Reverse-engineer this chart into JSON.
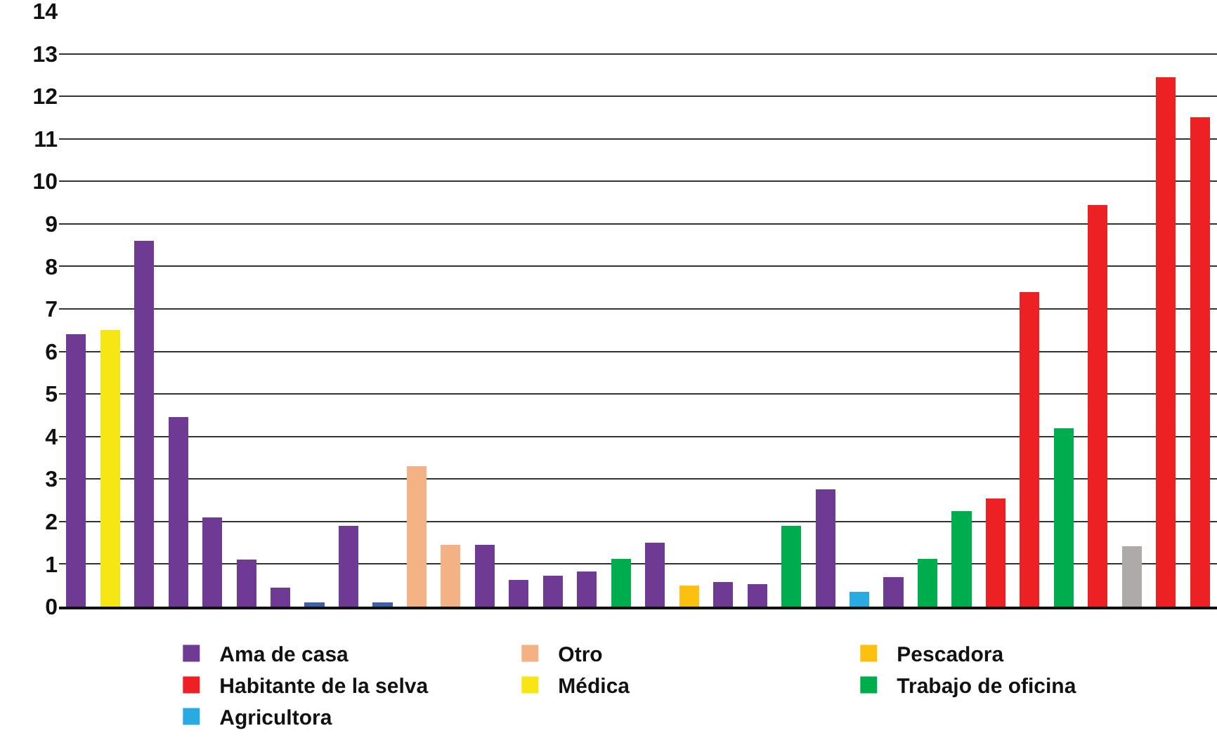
{
  "chart_data": {
    "type": "bar",
    "stacked": true,
    "categories": [
      null,
      null,
      null,
      null,
      null,
      null,
      null,
      null,
      null,
      null,
      null,
      null,
      null,
      null,
      null,
      null,
      null,
      null,
      null,
      null,
      null,
      null,
      null,
      null,
      null,
      null,
      null,
      null,
      null,
      null,
      null,
      null,
      null,
      null
    ],
    "series": [
      {
        "name": "Ama de casa",
        "color": "#6e3a94",
        "values": [
          6.4,
          null,
          8.6,
          4.45,
          2.1,
          1.1,
          0.45,
          null,
          1.9,
          null,
          null,
          null,
          1.45,
          0.63,
          0.73,
          0.83,
          null,
          1.5,
          null,
          0.57,
          0.53,
          null,
          2.75,
          null,
          0.7,
          null,
          null,
          null,
          null,
          null,
          null,
          null,
          null,
          null
        ]
      },
      {
        "name": "Otro",
        "color": "#f4b183",
        "values": [
          null,
          null,
          null,
          null,
          null,
          null,
          null,
          null,
          null,
          null,
          3.3,
          1.45,
          null,
          null,
          null,
          null,
          null,
          null,
          null,
          null,
          null,
          null,
          null,
          null,
          null,
          null,
          null,
          null,
          null,
          null,
          null,
          null,
          null,
          null
        ]
      },
      {
        "name": "Pescadora",
        "color": "#fdc010",
        "values": [
          null,
          null,
          null,
          null,
          null,
          null,
          null,
          null,
          null,
          null,
          null,
          null,
          null,
          null,
          null,
          null,
          null,
          null,
          0.5,
          null,
          null,
          null,
          null,
          null,
          null,
          null,
          null,
          null,
          null,
          null,
          null,
          null,
          null,
          null
        ]
      },
      {
        "name": "Habitante de la selva",
        "color": "#ed2024",
        "values": [
          null,
          null,
          null,
          null,
          null,
          null,
          null,
          null,
          null,
          null,
          null,
          null,
          null,
          null,
          null,
          null,
          null,
          null,
          null,
          null,
          null,
          null,
          null,
          null,
          null,
          null,
          null,
          2.55,
          7.4,
          null,
          9.45,
          null,
          12.45,
          11.5
        ]
      },
      {
        "name": "Médica",
        "color": "#f5e614",
        "values": [
          null,
          6.5,
          null,
          null,
          null,
          null,
          null,
          null,
          null,
          null,
          null,
          null,
          null,
          null,
          null,
          null,
          null,
          null,
          null,
          null,
          null,
          null,
          null,
          null,
          null,
          null,
          null,
          null,
          null,
          null,
          null,
          null,
          null,
          null
        ]
      },
      {
        "name": "Trabajo de oficina",
        "color": "#00ad4e",
        "values": [
          null,
          null,
          null,
          null,
          null,
          null,
          null,
          null,
          null,
          null,
          null,
          null,
          null,
          null,
          null,
          null,
          1.12,
          null,
          null,
          null,
          null,
          1.9,
          null,
          null,
          null,
          1.12,
          2.25,
          null,
          null,
          4.2,
          null,
          null,
          null,
          null
        ]
      },
      {
        "name": "Agricultora",
        "color": "#29abe2",
        "values": [
          null,
          null,
          null,
          null,
          null,
          null,
          null,
          null,
          null,
          null,
          null,
          null,
          null,
          null,
          null,
          null,
          null,
          null,
          null,
          null,
          null,
          null,
          null,
          0.35,
          null,
          null,
          null,
          null,
          null,
          null,
          null,
          null,
          null,
          null
        ]
      },
      {
        "color": "#3d62a8",
        "values": [
          null,
          null,
          null,
          null,
          null,
          null,
          null,
          0.1,
          null,
          0.1,
          null,
          null,
          null,
          null,
          null,
          null,
          null,
          null,
          null,
          null,
          null,
          null,
          null,
          null,
          null,
          null,
          null,
          null,
          null,
          null,
          null,
          null,
          null,
          null
        ]
      },
      {
        "color": "#afaaaa",
        "values": [
          null,
          null,
          null,
          null,
          null,
          null,
          null,
          null,
          null,
          null,
          null,
          null,
          null,
          null,
          null,
          null,
          null,
          null,
          null,
          null,
          null,
          null,
          null,
          null,
          null,
          null,
          null,
          null,
          null,
          null,
          null,
          1.42,
          null,
          null
        ]
      }
    ],
    "ylim": [
      0,
      14
    ],
    "yticks": [
      0,
      1,
      2,
      3,
      4,
      5,
      6,
      7,
      8,
      9,
      10,
      11,
      12,
      13,
      14
    ],
    "grid": "y",
    "legend": "bottom",
    "tick_labels": "y"
  }
}
